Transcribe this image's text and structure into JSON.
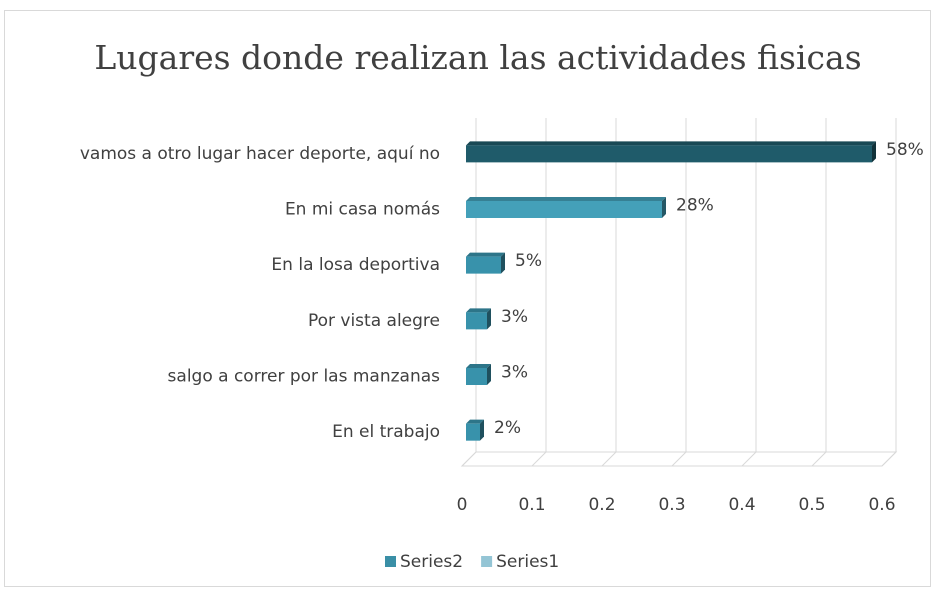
{
  "chart_data": {
    "type": "bar3d_horizontal",
    "title": "Lugares donde realizan las actividades fisicas",
    "categories": [
      "vamos a otro lugar hacer deporte, aquí no",
      "En mi casa nomás",
      "En la losa deportiva",
      "Por vista alegre",
      "salgo a correr por las manzanas",
      "En el trabajo"
    ],
    "series": [
      {
        "name": "Series2",
        "color": "#3a8fa6",
        "colors": [
          "#1f5b6a",
          "#44a0b9",
          "#3892ab",
          "#3892ab",
          "#3892ab",
          "#3892ab"
        ],
        "values": [
          0.58,
          0.28,
          0.05,
          0.03,
          0.03,
          0.02
        ],
        "value_labels": [
          "58%",
          "28%",
          "5%",
          "3%",
          "3%",
          "2%"
        ]
      },
      {
        "name": "Series1",
        "color": "#94c5d5",
        "values": [
          null,
          null,
          null,
          null,
          null,
          null
        ]
      }
    ],
    "xlim": [
      0,
      0.6
    ],
    "xticks": [
      0,
      0.1,
      0.2,
      0.3,
      0.4,
      0.5,
      0.6
    ],
    "grid": true,
    "legend": "bottom"
  }
}
